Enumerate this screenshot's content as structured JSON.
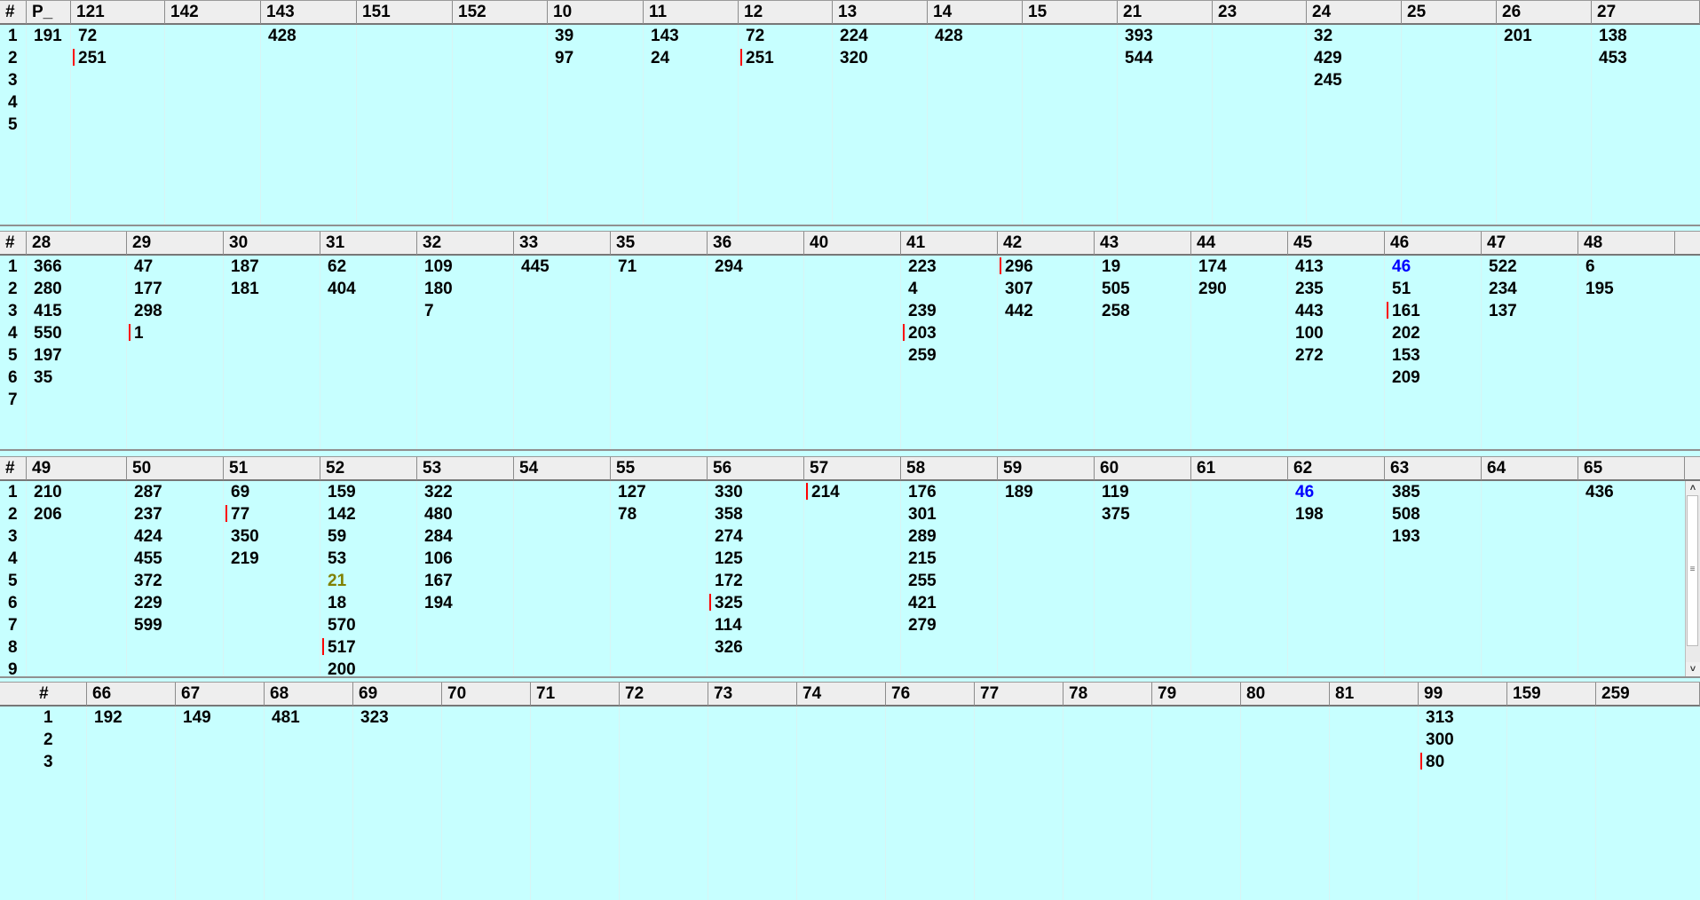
{
  "panels": [
    {
      "name": "panel-1",
      "columns": [
        "#",
        "P_",
        "121",
        "142",
        "143",
        "151",
        "152",
        "10",
        "11",
        "12",
        "13",
        "14",
        "15",
        "21",
        "23",
        "24",
        "25",
        "26",
        "27"
      ],
      "row_numbers": [
        "1",
        "2",
        "3",
        "4",
        "5"
      ],
      "cells": [
        {
          "col": 1,
          "row": 0,
          "value": "191"
        },
        {
          "col": 2,
          "row": 0,
          "value": "72"
        },
        {
          "col": 2,
          "row": 1,
          "value": "251",
          "marked": true
        },
        {
          "col": 4,
          "row": 0,
          "value": "428"
        },
        {
          "col": 7,
          "row": 0,
          "value": "39"
        },
        {
          "col": 7,
          "row": 1,
          "value": "97"
        },
        {
          "col": 8,
          "row": 0,
          "value": "143"
        },
        {
          "col": 8,
          "row": 1,
          "value": "24"
        },
        {
          "col": 9,
          "row": 0,
          "value": "72"
        },
        {
          "col": 9,
          "row": 1,
          "value": "251",
          "marked": true
        },
        {
          "col": 10,
          "row": 0,
          "value": "224"
        },
        {
          "col": 10,
          "row": 1,
          "value": "320"
        },
        {
          "col": 11,
          "row": 0,
          "value": "428"
        },
        {
          "col": 13,
          "row": 0,
          "value": "393"
        },
        {
          "col": 13,
          "row": 1,
          "value": "544"
        },
        {
          "col": 15,
          "row": 0,
          "value": "32"
        },
        {
          "col": 15,
          "row": 1,
          "value": "429"
        },
        {
          "col": 15,
          "row": 2,
          "value": "245"
        },
        {
          "col": 17,
          "row": 0,
          "value": "201"
        },
        {
          "col": 18,
          "row": 0,
          "value": "138"
        },
        {
          "col": 18,
          "row": 1,
          "value": "453"
        }
      ]
    },
    {
      "name": "panel-2",
      "columns": [
        "#",
        "28",
        "29",
        "30",
        "31",
        "32",
        "33",
        "35",
        "36",
        "40",
        "41",
        "42",
        "43",
        "44",
        "45",
        "46",
        "47",
        "48"
      ],
      "row_numbers": [
        "1",
        "2",
        "3",
        "4",
        "5",
        "6",
        "7"
      ],
      "cells": [
        {
          "col": 1,
          "row": 0,
          "value": "366"
        },
        {
          "col": 1,
          "row": 1,
          "value": "280"
        },
        {
          "col": 1,
          "row": 2,
          "value": "415"
        },
        {
          "col": 1,
          "row": 3,
          "value": "550"
        },
        {
          "col": 1,
          "row": 4,
          "value": "197"
        },
        {
          "col": 1,
          "row": 5,
          "value": "35"
        },
        {
          "col": 2,
          "row": 0,
          "value": "47"
        },
        {
          "col": 2,
          "row": 1,
          "value": "177"
        },
        {
          "col": 2,
          "row": 2,
          "value": "298"
        },
        {
          "col": 2,
          "row": 3,
          "value": "1",
          "marked": true
        },
        {
          "col": 3,
          "row": 0,
          "value": "187"
        },
        {
          "col": 3,
          "row": 1,
          "value": "181"
        },
        {
          "col": 4,
          "row": 0,
          "value": "62"
        },
        {
          "col": 4,
          "row": 1,
          "value": "404"
        },
        {
          "col": 5,
          "row": 0,
          "value": "109"
        },
        {
          "col": 5,
          "row": 1,
          "value": "180"
        },
        {
          "col": 5,
          "row": 2,
          "value": "7"
        },
        {
          "col": 6,
          "row": 0,
          "value": "445"
        },
        {
          "col": 7,
          "row": 0,
          "value": "71"
        },
        {
          "col": 8,
          "row": 0,
          "value": "294"
        },
        {
          "col": 10,
          "row": 0,
          "value": "223"
        },
        {
          "col": 10,
          "row": 1,
          "value": "4"
        },
        {
          "col": 10,
          "row": 2,
          "value": "239"
        },
        {
          "col": 10,
          "row": 3,
          "value": "203",
          "marked": true
        },
        {
          "col": 10,
          "row": 4,
          "value": "259"
        },
        {
          "col": 11,
          "row": 0,
          "value": "296",
          "marked": true
        },
        {
          "col": 11,
          "row": 1,
          "value": "307"
        },
        {
          "col": 11,
          "row": 2,
          "value": "442"
        },
        {
          "col": 12,
          "row": 0,
          "value": "19"
        },
        {
          "col": 12,
          "row": 1,
          "value": "505"
        },
        {
          "col": 12,
          "row": 2,
          "value": "258"
        },
        {
          "col": 13,
          "row": 0,
          "value": "174"
        },
        {
          "col": 13,
          "row": 1,
          "value": "290"
        },
        {
          "col": 14,
          "row": 0,
          "value": "413"
        },
        {
          "col": 14,
          "row": 1,
          "value": "235"
        },
        {
          "col": 14,
          "row": 2,
          "value": "443"
        },
        {
          "col": 14,
          "row": 3,
          "value": "100"
        },
        {
          "col": 14,
          "row": 4,
          "value": "272"
        },
        {
          "col": 15,
          "row": 0,
          "value": "46",
          "color": "#0000ff"
        },
        {
          "col": 15,
          "row": 1,
          "value": "51"
        },
        {
          "col": 15,
          "row": 2,
          "value": "161",
          "marked": true
        },
        {
          "col": 15,
          "row": 3,
          "value": "202"
        },
        {
          "col": 15,
          "row": 4,
          "value": "153"
        },
        {
          "col": 15,
          "row": 5,
          "value": "209"
        },
        {
          "col": 16,
          "row": 0,
          "value": "522"
        },
        {
          "col": 16,
          "row": 1,
          "value": "234"
        },
        {
          "col": 16,
          "row": 2,
          "value": "137"
        },
        {
          "col": 17,
          "row": 0,
          "value": "6"
        },
        {
          "col": 17,
          "row": 1,
          "value": "195"
        }
      ]
    },
    {
      "name": "panel-3",
      "columns": [
        "#",
        "49",
        "50",
        "51",
        "52",
        "53",
        "54",
        "55",
        "56",
        "57",
        "58",
        "59",
        "60",
        "61",
        "62",
        "63",
        "64",
        "65"
      ],
      "row_numbers": [
        "1",
        "2",
        "3",
        "4",
        "5",
        "6",
        "7",
        "8",
        "9"
      ],
      "cells": [
        {
          "col": 1,
          "row": 0,
          "value": "210"
        },
        {
          "col": 1,
          "row": 1,
          "value": "206"
        },
        {
          "col": 2,
          "row": 0,
          "value": "287"
        },
        {
          "col": 2,
          "row": 1,
          "value": "237"
        },
        {
          "col": 2,
          "row": 2,
          "value": "424"
        },
        {
          "col": 2,
          "row": 3,
          "value": "455"
        },
        {
          "col": 2,
          "row": 4,
          "value": "372"
        },
        {
          "col": 2,
          "row": 5,
          "value": "229"
        },
        {
          "col": 2,
          "row": 6,
          "value": "599"
        },
        {
          "col": 3,
          "row": 0,
          "value": "69"
        },
        {
          "col": 3,
          "row": 1,
          "value": "77",
          "marked": true
        },
        {
          "col": 3,
          "row": 2,
          "value": "350"
        },
        {
          "col": 3,
          "row": 3,
          "value": "219"
        },
        {
          "col": 4,
          "row": 0,
          "value": "159"
        },
        {
          "col": 4,
          "row": 1,
          "value": "142"
        },
        {
          "col": 4,
          "row": 2,
          "value": "59"
        },
        {
          "col": 4,
          "row": 3,
          "value": "53"
        },
        {
          "col": 4,
          "row": 4,
          "value": "21",
          "color": "#808000"
        },
        {
          "col": 4,
          "row": 5,
          "value": "18"
        },
        {
          "col": 4,
          "row": 6,
          "value": "570"
        },
        {
          "col": 4,
          "row": 7,
          "value": "517",
          "marked": true
        },
        {
          "col": 4,
          "row": 8,
          "value": "200"
        },
        {
          "col": 5,
          "row": 0,
          "value": "322"
        },
        {
          "col": 5,
          "row": 1,
          "value": "480"
        },
        {
          "col": 5,
          "row": 2,
          "value": "284"
        },
        {
          "col": 5,
          "row": 3,
          "value": "106"
        },
        {
          "col": 5,
          "row": 4,
          "value": "167"
        },
        {
          "col": 5,
          "row": 5,
          "value": "194"
        },
        {
          "col": 7,
          "row": 0,
          "value": "127"
        },
        {
          "col": 7,
          "row": 1,
          "value": "78"
        },
        {
          "col": 8,
          "row": 0,
          "value": "330"
        },
        {
          "col": 8,
          "row": 1,
          "value": "358"
        },
        {
          "col": 8,
          "row": 2,
          "value": "274"
        },
        {
          "col": 8,
          "row": 3,
          "value": "125"
        },
        {
          "col": 8,
          "row": 4,
          "value": "172"
        },
        {
          "col": 8,
          "row": 5,
          "value": "325",
          "marked": true
        },
        {
          "col": 8,
          "row": 6,
          "value": "114"
        },
        {
          "col": 8,
          "row": 7,
          "value": "326"
        },
        {
          "col": 9,
          "row": 0,
          "value": "214",
          "marked": true
        },
        {
          "col": 10,
          "row": 0,
          "value": "176"
        },
        {
          "col": 10,
          "row": 1,
          "value": "301"
        },
        {
          "col": 10,
          "row": 2,
          "value": "289"
        },
        {
          "col": 10,
          "row": 3,
          "value": "215"
        },
        {
          "col": 10,
          "row": 4,
          "value": "255"
        },
        {
          "col": 10,
          "row": 5,
          "value": "421"
        },
        {
          "col": 10,
          "row": 6,
          "value": "279"
        },
        {
          "col": 11,
          "row": 0,
          "value": "189"
        },
        {
          "col": 12,
          "row": 0,
          "value": "119"
        },
        {
          "col": 12,
          "row": 1,
          "value": "375"
        },
        {
          "col": 14,
          "row": 0,
          "value": "46",
          "color": "#0000ff"
        },
        {
          "col": 14,
          "row": 1,
          "value": "198"
        },
        {
          "col": 15,
          "row": 0,
          "value": "385"
        },
        {
          "col": 15,
          "row": 1,
          "value": "508"
        },
        {
          "col": 15,
          "row": 2,
          "value": "193"
        },
        {
          "col": 17,
          "row": 0,
          "value": "436"
        }
      ]
    },
    {
      "name": "panel-4",
      "columns": [
        "#",
        "66",
        "67",
        "68",
        "69",
        "70",
        "71",
        "72",
        "73",
        "74",
        "76",
        "77",
        "78",
        "79",
        "80",
        "81",
        "99",
        "159",
        "259"
      ],
      "row_numbers": [
        "1",
        "2",
        "3"
      ],
      "cells": [
        {
          "col": 1,
          "row": 0,
          "value": "192"
        },
        {
          "col": 2,
          "row": 0,
          "value": "149"
        },
        {
          "col": 3,
          "row": 0,
          "value": "481"
        },
        {
          "col": 4,
          "row": 0,
          "value": "323"
        },
        {
          "col": 16,
          "row": 0,
          "value": "313"
        },
        {
          "col": 16,
          "row": 1,
          "value": "300"
        },
        {
          "col": 16,
          "row": 2,
          "value": "80",
          "marked": true
        }
      ]
    }
  ],
  "scrollbar": {
    "up_arrow": "˄",
    "down_arrow": "˅",
    "thumb_grip": "≡"
  }
}
